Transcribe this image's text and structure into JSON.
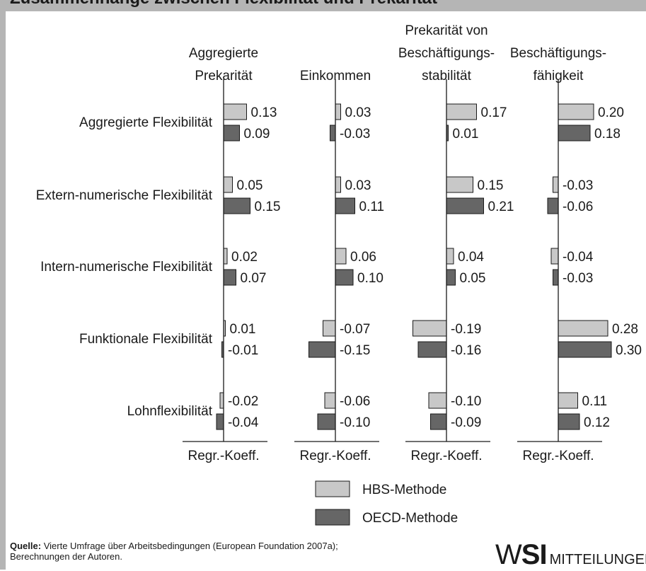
{
  "header": {
    "title": "Zusammenhänge zwischen Flexibilität und Prekarität"
  },
  "chart_data": {
    "type": "bar",
    "orientation": "horizontal",
    "categories": [
      "Aggregierte Flexibilität",
      "Extern-numerische Flexibilität",
      "Intern-numerische Flexibilität",
      "Funktionale Flexibilität",
      "Lohnflexibilität"
    ],
    "panels": [
      {
        "title": [
          "Aggregierte",
          "Prekarität"
        ],
        "xlabel": "Regr.-Koeff.",
        "series": [
          {
            "name": "HBS-Methode",
            "values": [
              0.13,
              0.05,
              0.02,
              0.01,
              -0.02
            ],
            "labels": [
              "0.13",
              "0.05",
              "0.02",
              "0.01",
              "-0.02"
            ]
          },
          {
            "name": "OECD-Methode",
            "values": [
              0.09,
              0.15,
              0.07,
              -0.01,
              -0.04
            ],
            "labels": [
              "0.09",
              "0.15",
              "0.07",
              "-0.01",
              "-0.04"
            ]
          }
        ]
      },
      {
        "title": [
          "Einkommen"
        ],
        "xlabel": "Regr.-Koeff.",
        "series": [
          {
            "name": "HBS-Methode",
            "values": [
              0.03,
              0.03,
              0.06,
              -0.07,
              -0.06
            ],
            "labels": [
              "0.03",
              "0.03",
              "0.06",
              "-0.07",
              "-0.06"
            ]
          },
          {
            "name": "OECD-Methode",
            "values": [
              -0.03,
              0.11,
              0.1,
              -0.15,
              -0.1
            ],
            "labels": [
              "-0.03",
              "0.11",
              "0.10",
              "-0.15",
              "-0.10"
            ]
          }
        ]
      },
      {
        "title": [
          "Prekarität von",
          "Beschäftigungs-",
          "stabilität"
        ],
        "xlabel": "Regr.-Koeff.",
        "series": [
          {
            "name": "HBS-Methode",
            "values": [
              0.17,
              0.15,
              0.04,
              -0.19,
              -0.1
            ],
            "labels": [
              "0.17",
              "0.15",
              "0.04",
              "-0.19",
              "-0.10"
            ]
          },
          {
            "name": "OECD-Methode",
            "values": [
              0.01,
              0.21,
              0.05,
              -0.16,
              -0.09
            ],
            "labels": [
              "0.01",
              "0.21",
              "0.05",
              "-0.16",
              "-0.09"
            ]
          }
        ]
      },
      {
        "title": [
          "Beschäftigungs-",
          "fähigkeit"
        ],
        "xlabel": "Regr.-Koeff.",
        "series": [
          {
            "name": "HBS-Methode",
            "values": [
              0.2,
              -0.03,
              -0.04,
              0.28,
              0.11
            ],
            "labels": [
              "0.20",
              "-0.03",
              "-0.04",
              "0.28",
              "0.11"
            ]
          },
          {
            "name": "OECD-Methode",
            "values": [
              0.18,
              -0.06,
              -0.03,
              0.3,
              0.12
            ],
            "labels": [
              "0.18",
              "-0.06",
              "-0.03",
              "0.30",
              "0.12"
            ]
          }
        ]
      }
    ],
    "legend": {
      "position": "bottom",
      "items": [
        {
          "name": "HBS-Methode",
          "color": "#c8c8c8"
        },
        {
          "name": "OECD-Methode",
          "color": "#666666"
        }
      ]
    }
  },
  "footer": {
    "source_label": "Quelle:",
    "source_text": "Vierte Umfrage über Arbeitsbedingungen (European Foundation 2007a);",
    "source_text_2": "Berechnungen der Autoren."
  },
  "logo": {
    "mark_thin": "W",
    "mark_bold": "SI",
    "subtitle": "MITTEILUNGEN"
  }
}
